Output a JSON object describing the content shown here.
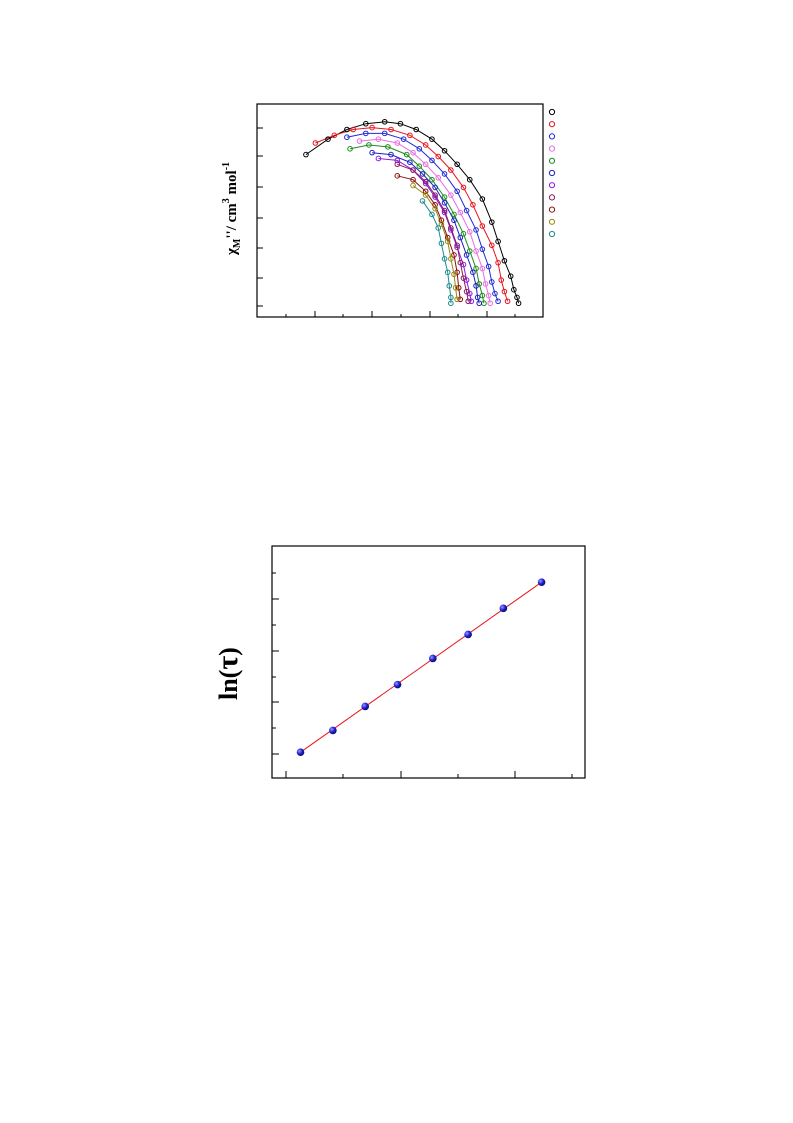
{
  "chart_data": [
    {
      "type": "scatter",
      "subtype": "cole-cole",
      "title": "",
      "xlabel": "",
      "ylabel_parts": {
        "a": "χ",
        "b": "M",
        "c": "''/ cm",
        "d": "3",
        "e": " mol",
        "f": "-1"
      },
      "legend_position": "right",
      "tick_labels_visible": false,
      "x_note": "x' in plot units",
      "series": [
        {
          "color": "#000000",
          "points": [
            [
              0.13,
              0.8
            ],
            [
              0.2,
              0.88
            ],
            [
              0.26,
              0.93
            ],
            [
              0.32,
              0.96
            ],
            [
              0.38,
              0.97
            ],
            [
              0.43,
              0.96
            ],
            [
              0.48,
              0.93
            ],
            [
              0.53,
              0.88
            ],
            [
              0.57,
              0.82
            ],
            [
              0.61,
              0.75
            ],
            [
              0.65,
              0.67
            ],
            [
              0.69,
              0.57
            ],
            [
              0.72,
              0.45
            ],
            [
              0.74,
              0.35
            ],
            [
              0.76,
              0.25
            ],
            [
              0.78,
              0.17
            ],
            [
              0.79,
              0.1
            ],
            [
              0.8,
              0.06
            ],
            [
              0.805,
              0.03
            ]
          ]
        },
        {
          "color": "#e8141c",
          "points": [
            [
              0.16,
              0.86
            ],
            [
              0.22,
              0.9
            ],
            [
              0.28,
              0.93
            ],
            [
              0.34,
              0.94
            ],
            [
              0.4,
              0.93
            ],
            [
              0.46,
              0.9
            ],
            [
              0.51,
              0.85
            ],
            [
              0.55,
              0.79
            ],
            [
              0.59,
              0.72
            ],
            [
              0.63,
              0.63
            ],
            [
              0.66,
              0.54
            ],
            [
              0.69,
              0.43
            ],
            [
              0.72,
              0.33
            ],
            [
              0.74,
              0.24
            ],
            [
              0.75,
              0.15
            ],
            [
              0.76,
              0.09
            ],
            [
              0.77,
              0.04
            ]
          ]
        },
        {
          "color": "#1f2bd6",
          "points": [
            [
              0.26,
              0.89
            ],
            [
              0.32,
              0.91
            ],
            [
              0.38,
              0.91
            ],
            [
              0.44,
              0.88
            ],
            [
              0.49,
              0.83
            ],
            [
              0.53,
              0.77
            ],
            [
              0.57,
              0.7
            ],
            [
              0.61,
              0.61
            ],
            [
              0.64,
              0.51
            ],
            [
              0.67,
              0.41
            ],
            [
              0.69,
              0.31
            ],
            [
              0.71,
              0.22
            ],
            [
              0.72,
              0.14
            ],
            [
              0.73,
              0.08
            ],
            [
              0.74,
              0.04
            ]
          ]
        },
        {
          "color": "#e86ee0",
          "points": [
            [
              0.3,
              0.87
            ],
            [
              0.36,
              0.88
            ],
            [
              0.42,
              0.86
            ],
            [
              0.47,
              0.81
            ],
            [
              0.51,
              0.75
            ],
            [
              0.55,
              0.68
            ],
            [
              0.59,
              0.59
            ],
            [
              0.62,
              0.5
            ],
            [
              0.65,
              0.4
            ],
            [
              0.67,
              0.3
            ],
            [
              0.69,
              0.21
            ],
            [
              0.7,
              0.13
            ],
            [
              0.71,
              0.07
            ],
            [
              0.715,
              0.03
            ]
          ]
        },
        {
          "color": "#1c8c1c",
          "points": [
            [
              0.27,
              0.83
            ],
            [
              0.33,
              0.85
            ],
            [
              0.39,
              0.84
            ],
            [
              0.45,
              0.8
            ],
            [
              0.49,
              0.74
            ],
            [
              0.53,
              0.67
            ],
            [
              0.57,
              0.58
            ],
            [
              0.6,
              0.49
            ],
            [
              0.63,
              0.39
            ],
            [
              0.65,
              0.3
            ],
            [
              0.67,
              0.21
            ],
            [
              0.68,
              0.13
            ],
            [
              0.69,
              0.07
            ],
            [
              0.695,
              0.03
            ]
          ]
        },
        {
          "color": "#1a20c0",
          "points": [
            [
              0.34,
              0.81
            ],
            [
              0.4,
              0.8
            ],
            [
              0.46,
              0.76
            ],
            [
              0.5,
              0.7
            ],
            [
              0.54,
              0.63
            ],
            [
              0.57,
              0.55
            ],
            [
              0.6,
              0.46
            ],
            [
              0.62,
              0.37
            ],
            [
              0.64,
              0.28
            ],
            [
              0.66,
              0.19
            ],
            [
              0.67,
              0.12
            ],
            [
              0.675,
              0.06
            ],
            [
              0.68,
              0.03
            ]
          ]
        },
        {
          "color": "#8b1ae0",
          "points": [
            [
              0.36,
              0.78
            ],
            [
              0.42,
              0.77
            ],
            [
              0.47,
              0.72
            ],
            [
              0.51,
              0.65
            ],
            [
              0.54,
              0.58
            ],
            [
              0.57,
              0.5
            ],
            [
              0.59,
              0.41
            ],
            [
              0.61,
              0.32
            ],
            [
              0.63,
              0.23
            ],
            [
              0.64,
              0.15
            ],
            [
              0.65,
              0.08
            ],
            [
              0.655,
              0.04
            ]
          ]
        },
        {
          "color": "#8a1c5c",
          "points": [
            [
              0.42,
              0.75
            ],
            [
              0.47,
              0.72
            ],
            [
              0.51,
              0.66
            ],
            [
              0.54,
              0.59
            ],
            [
              0.57,
              0.51
            ],
            [
              0.59,
              0.42
            ],
            [
              0.61,
              0.33
            ],
            [
              0.62,
              0.24
            ],
            [
              0.63,
              0.16
            ],
            [
              0.64,
              0.09
            ],
            [
              0.645,
              0.04
            ]
          ]
        },
        {
          "color": "#8a1010",
          "points": [
            [
              0.42,
              0.69
            ],
            [
              0.47,
              0.67
            ],
            [
              0.51,
              0.61
            ],
            [
              0.54,
              0.54
            ],
            [
              0.56,
              0.46
            ],
            [
              0.58,
              0.37
            ],
            [
              0.6,
              0.28
            ],
            [
              0.61,
              0.19
            ],
            [
              0.615,
              0.11
            ],
            [
              0.62,
              0.05
            ]
          ]
        },
        {
          "color": "#9a8a10",
          "points": [
            [
              0.47,
              0.64
            ],
            [
              0.51,
              0.59
            ],
            [
              0.54,
              0.52
            ],
            [
              0.56,
              0.44
            ],
            [
              0.58,
              0.35
            ],
            [
              0.59,
              0.26
            ],
            [
              0.6,
              0.18
            ],
            [
              0.605,
              0.11
            ],
            [
              0.61,
              0.05
            ]
          ]
        },
        {
          "color": "#1a8c8c",
          "points": [
            [
              0.5,
              0.56
            ],
            [
              0.53,
              0.49
            ],
            [
              0.55,
              0.42
            ],
            [
              0.56,
              0.34
            ],
            [
              0.57,
              0.26
            ],
            [
              0.58,
              0.19
            ],
            [
              0.585,
              0.12
            ],
            [
              0.59,
              0.06
            ],
            [
              0.59,
              0.03
            ]
          ]
        }
      ]
    },
    {
      "type": "scatter",
      "subtype": "arrhenius",
      "title": "",
      "xlabel": "",
      "ylabel_parts": {
        "a": "ln(",
        "b": "τ",
        "c": ")"
      },
      "tick_labels_visible": false,
      "colors": {
        "marker": "#2323d8",
        "fit": "#e8141c"
      },
      "points": [
        [
          0.08,
          0.1
        ],
        [
          0.19,
          0.2
        ],
        [
          0.3,
          0.31
        ],
        [
          0.41,
          0.41
        ],
        [
          0.53,
          0.53
        ],
        [
          0.65,
          0.64
        ],
        [
          0.77,
          0.76
        ],
        [
          0.9,
          0.88
        ]
      ]
    }
  ]
}
